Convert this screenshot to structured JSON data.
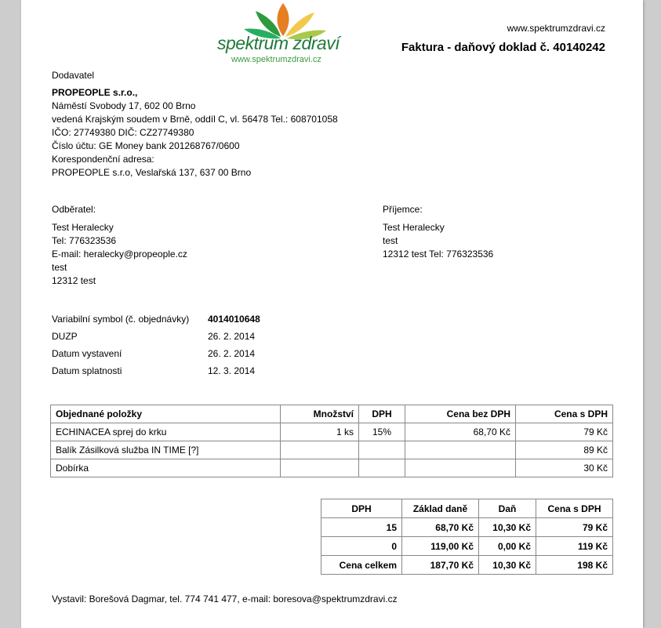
{
  "logo": {
    "text": "spektrum zdraví",
    "url": "www.spektrumzdravi.cz"
  },
  "header": {
    "website": "www.spektrumzdravi.cz",
    "title": "Faktura - daňový doklad č. 40140242"
  },
  "supplier": {
    "label": "Dodavatel",
    "name": "PROPEOPLE s.r.o.,",
    "lines": [
      "Náměstí Svobody 17, 602 00 Brno",
      "vedená Krajským soudem v Brně, oddíl C, vl. 56478 Tel.: 608701058",
      "IČO: 27749380 DIČ: CZ27749380",
      "Číslo účtu: GE Money bank 201268767/0600",
      "Korespondenční adresa:",
      "PROPEOPLE s.r.o, Veslařská 137, 637 00 Brno"
    ]
  },
  "customer": {
    "label": "Odběratel:",
    "lines": [
      "Test Heralecky",
      "Tel: 776323536",
      "E-mail: heralecky@propeople.cz",
      "test",
      "12312 test"
    ]
  },
  "recipient": {
    "label": "Příjemce:",
    "lines": [
      "Test Heralecky",
      "test",
      "12312 test Tel: 776323536"
    ]
  },
  "info": [
    {
      "label": "Variabilní symbol (č. objednávky)",
      "value": "4014010648"
    },
    {
      "label": "DUZP",
      "value": "26. 2. 2014"
    },
    {
      "label": "Datum vystavení",
      "value": "26. 2. 2014"
    },
    {
      "label": "Datum splatnosti",
      "value": "12. 3. 2014"
    }
  ],
  "items": {
    "headers": [
      "Objednané položky",
      "Množství",
      "DPH",
      "Cena bez DPH",
      "Cena s DPH"
    ],
    "rows": [
      [
        "ECHINACEA sprej do krku",
        "1 ks",
        "15%",
        "68,70 Kč",
        "79 Kč"
      ],
      [
        "Balík Zásilková služba IN TIME [?]",
        "",
        "",
        "",
        "89 Kč"
      ],
      [
        "Dobírka",
        "",
        "",
        "",
        "30 Kč"
      ]
    ]
  },
  "vat": {
    "headers": [
      "DPH",
      "Základ daně",
      "Daň",
      "Cena s DPH"
    ],
    "rows": [
      [
        "15",
        "68,70 Kč",
        "10,30 Kč",
        "79 Kč"
      ],
      [
        "0",
        "119,00 Kč",
        "0,00 Kč",
        "119 Kč"
      ]
    ],
    "total": [
      "Cena celkem",
      "187,70 Kč",
      "10,30 Kč",
      "198 Kč"
    ]
  },
  "footer": "Vystavil: Borešová Dagmar, tel. 774 741 477, e-mail: boresova@spektrumzdravi.cz"
}
